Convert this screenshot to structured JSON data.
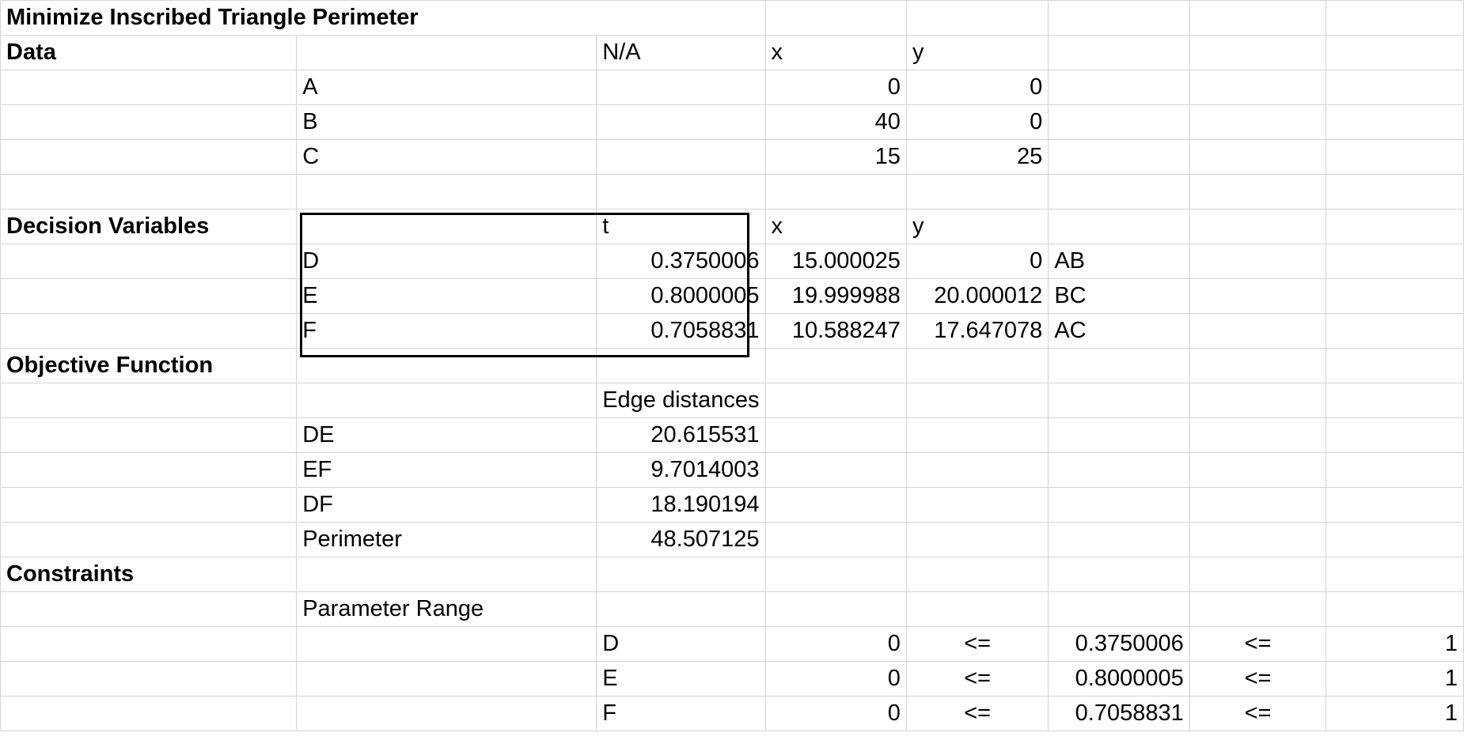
{
  "title": "Minimize Inscribed Triangle Perimeter",
  "data_section": {
    "label": "Data",
    "header": [
      "N/A",
      "x",
      "y"
    ],
    "points": [
      {
        "name": "A",
        "x": "0",
        "y": "0"
      },
      {
        "name": "B",
        "x": "40",
        "y": "0"
      },
      {
        "name": "C",
        "x": "15",
        "y": "25"
      }
    ]
  },
  "decision_variables": {
    "label": "Decision Variables",
    "header": [
      "t",
      "x",
      "y"
    ],
    "rows": [
      {
        "name": "D",
        "t": "0.3750006",
        "x": "15.000025",
        "y": "0",
        "edge": "AB"
      },
      {
        "name": "E",
        "t": "0.8000005",
        "x": "19.999988",
        "y": "20.000012",
        "edge": "BC"
      },
      {
        "name": "F",
        "t": "0.7058831",
        "x": "10.588247",
        "y": "17.647078",
        "edge": "AC"
      }
    ]
  },
  "objective": {
    "label": "Objective Function",
    "header": "Edge distances",
    "rows": [
      {
        "name": "DE",
        "value": "20.615531"
      },
      {
        "name": "EF",
        "value": "9.7014003"
      },
      {
        "name": "DF",
        "value": "18.190194"
      },
      {
        "name": "Perimeter",
        "value": "48.507125"
      }
    ]
  },
  "constraints": {
    "label": "Constraints",
    "sublabel": "Parameter Range",
    "rows": [
      {
        "name": "D",
        "lower": "0",
        "op1": "<=",
        "value": "0.3750006",
        "op2": "<=",
        "upper": "1"
      },
      {
        "name": "E",
        "lower": "0",
        "op1": "<=",
        "value": "0.8000005",
        "op2": "<=",
        "upper": "1"
      },
      {
        "name": "F",
        "lower": "0",
        "op1": "<=",
        "value": "0.7058831",
        "op2": "<=",
        "upper": "1"
      }
    ]
  }
}
